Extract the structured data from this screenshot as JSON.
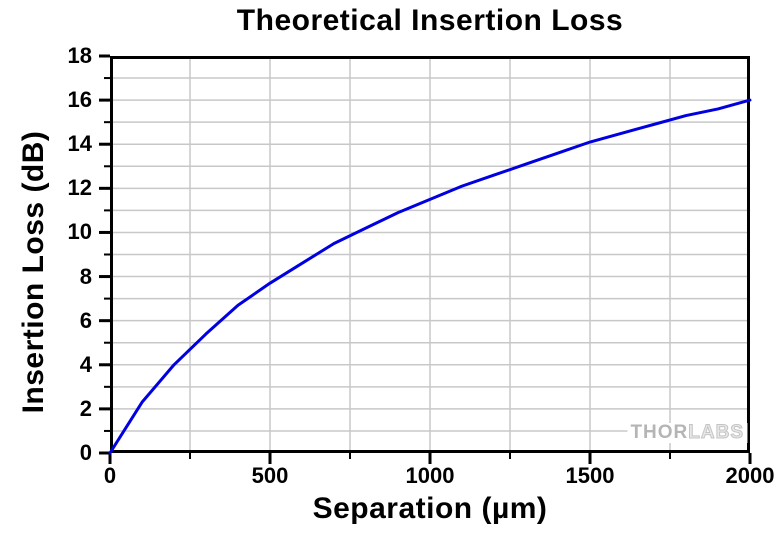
{
  "chart_data": {
    "type": "line",
    "title": "Theoretical Insertion Loss",
    "xlabel": "Separation (µm)",
    "ylabel": "Insertion Loss (dB)",
    "xlim": [
      0,
      2000
    ],
    "ylim": [
      0,
      18
    ],
    "x_major_ticks": [
      0,
      500,
      1000,
      1500,
      2000
    ],
    "x_minor_step": 250,
    "y_major_ticks": [
      0,
      2,
      4,
      6,
      8,
      10,
      12,
      14,
      16,
      18
    ],
    "y_minor_step": 1,
    "grid": "minor gridlines on, both axes, light gray",
    "legend": "none",
    "series": [
      {
        "name": "Theoretical Insertion Loss",
        "x": [
          0,
          100,
          200,
          300,
          400,
          500,
          600,
          700,
          800,
          900,
          1000,
          1100,
          1200,
          1300,
          1400,
          1500,
          1600,
          1700,
          1800,
          1900,
          2000
        ],
        "y": [
          0,
          2.3,
          4.0,
          5.4,
          6.7,
          7.7,
          8.6,
          9.5,
          10.2,
          10.9,
          11.5,
          12.1,
          12.6,
          13.1,
          13.6,
          14.1,
          14.5,
          14.9,
          15.3,
          15.6,
          16.0
        ]
      }
    ]
  },
  "watermark": {
    "part1": "THOR",
    "part2": "LABS"
  },
  "colors": {
    "curve": "#0000E0",
    "grid": "#c8c8c8",
    "axis": "#000000",
    "text": "#000000",
    "watermark_thor": "#b5b5b5",
    "watermark_labs": "#e8e8e8",
    "background": "#ffffff"
  }
}
